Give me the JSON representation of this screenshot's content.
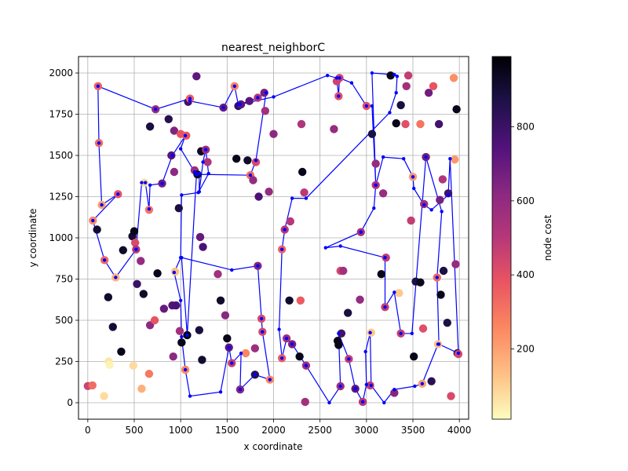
{
  "chart_data": {
    "type": "scatter",
    "title": "nearest_neighborC",
    "xlabel": "x coordinate",
    "ylabel": "y coordinate",
    "colorbar_label": "node cost",
    "xlim": [
      -100,
      4100
    ],
    "ylim": [
      -100,
      2100
    ],
    "xticks": [
      0,
      500,
      1000,
      1500,
      2000,
      2500,
      3000,
      3500,
      4000
    ],
    "yticks": [
      0,
      250,
      500,
      750,
      1000,
      1250,
      1500,
      1750,
      2000
    ],
    "clim": [
      10,
      990
    ],
    "cticks": [
      200,
      400,
      600,
      800
    ],
    "grid": true,
    "route_color": "#0000ff",
    "colormap": "magma_r",
    "points": [
      [
        0,
        101,
        450
      ],
      [
        50,
        105,
        320
      ],
      [
        55,
        1105,
        250
      ],
      [
        100,
        1050,
        900
      ],
      [
        110,
        1920,
        350
      ],
      [
        120,
        1575,
        330
      ],
      [
        150,
        1200,
        200
      ],
      [
        175,
        40,
        80
      ],
      [
        180,
        865,
        330
      ],
      [
        220,
        640,
        920
      ],
      [
        225,
        250,
        60
      ],
      [
        235,
        230,
        30
      ],
      [
        270,
        460,
        900
      ],
      [
        300,
        760,
        160
      ],
      [
        325,
        1265,
        380
      ],
      [
        360,
        310,
        950
      ],
      [
        380,
        925,
        920
      ],
      [
        480,
        1010,
        900
      ],
      [
        490,
        225,
        80
      ],
      [
        500,
        1040,
        950
      ],
      [
        510,
        970,
        420
      ],
      [
        520,
        930,
        520
      ],
      [
        530,
        720,
        800
      ],
      [
        570,
        860,
        600
      ],
      [
        580,
        85,
        170
      ],
      [
        600,
        660,
        920
      ],
      [
        610,
        1335,
        80
      ],
      [
        660,
        175,
        290
      ],
      [
        660,
        1170,
        300
      ],
      [
        670,
        470,
        620
      ],
      [
        670,
        1675,
        880
      ],
      [
        720,
        500,
        380
      ],
      [
        730,
        1780,
        600
      ],
      [
        750,
        785,
        950
      ],
      [
        800,
        1330,
        680
      ],
      [
        820,
        570,
        700
      ],
      [
        870,
        1720,
        850
      ],
      [
        900,
        1500,
        730
      ],
      [
        910,
        590,
        740
      ],
      [
        920,
        280,
        620
      ],
      [
        930,
        1400,
        620
      ],
      [
        930,
        1650,
        650
      ],
      [
        940,
        795,
        140
      ],
      [
        950,
        590,
        760
      ],
      [
        980,
        1180,
        880
      ],
      [
        990,
        435,
        560
      ],
      [
        1000,
        1630,
        380
      ],
      [
        1010,
        365,
        950
      ],
      [
        1050,
        200,
        260
      ],
      [
        1060,
        1620,
        380
      ],
      [
        1070,
        410,
        950
      ],
      [
        1080,
        1825,
        780
      ],
      [
        1100,
        1845,
        360
      ],
      [
        1150,
        1410,
        580
      ],
      [
        1170,
        1980,
        720
      ],
      [
        1180,
        1385,
        920
      ],
      [
        1200,
        440,
        880
      ],
      [
        1210,
        1005,
        700
      ],
      [
        1220,
        1525,
        930
      ],
      [
        1230,
        260,
        910
      ],
      [
        1240,
        945,
        760
      ],
      [
        1270,
        1535,
        580
      ],
      [
        1290,
        1460,
        520
      ],
      [
        1400,
        780,
        560
      ],
      [
        1430,
        620,
        920
      ],
      [
        1460,
        1790,
        690
      ],
      [
        1480,
        530,
        630
      ],
      [
        1500,
        390,
        950
      ],
      [
        1520,
        335,
        720
      ],
      [
        1550,
        240,
        460
      ],
      [
        1580,
        1920,
        270
      ],
      [
        1600,
        1480,
        950
      ],
      [
        1620,
        1800,
        810
      ],
      [
        1640,
        80,
        640
      ],
      [
        1650,
        1810,
        720
      ],
      [
        1700,
        300,
        260
      ],
      [
        1720,
        1470,
        920
      ],
      [
        1740,
        1830,
        730
      ],
      [
        1750,
        1380,
        320
      ],
      [
        1780,
        1350,
        600
      ],
      [
        1800,
        170,
        850
      ],
      [
        1800,
        330,
        570
      ],
      [
        1810,
        1460,
        430
      ],
      [
        1830,
        1850,
        520
      ],
      [
        1830,
        830,
        640
      ],
      [
        1840,
        1250,
        760
      ],
      [
        1870,
        510,
        420
      ],
      [
        1880,
        430,
        430
      ],
      [
        1900,
        1880,
        670
      ],
      [
        1910,
        1770,
        560
      ],
      [
        1950,
        1280,
        600
      ],
      [
        1960,
        140,
        260
      ],
      [
        2000,
        1630,
        620
      ],
      [
        2090,
        270,
        360
      ],
      [
        2090,
        930,
        350
      ],
      [
        2120,
        1050,
        500
      ],
      [
        2140,
        390,
        560
      ],
      [
        2170,
        620,
        920
      ],
      [
        2180,
        1100,
        500
      ],
      [
        2200,
        355,
        660
      ],
      [
        2280,
        280,
        950
      ],
      [
        2290,
        620,
        360
      ],
      [
        2300,
        1690,
        520
      ],
      [
        2310,
        1400,
        950
      ],
      [
        2330,
        1275,
        490
      ],
      [
        2340,
        5,
        560
      ],
      [
        2350,
        225,
        570
      ],
      [
        2680,
        1950,
        450
      ],
      [
        2690,
        375,
        950
      ],
      [
        2700,
        350,
        950
      ],
      [
        2700,
        1860,
        400
      ],
      [
        2710,
        1970,
        450
      ],
      [
        2720,
        800,
        430
      ],
      [
        2720,
        100,
        580
      ],
      [
        2730,
        420,
        780
      ],
      [
        2750,
        800,
        560
      ],
      [
        2650,
        1660,
        600
      ],
      [
        2800,
        545,
        880
      ],
      [
        2810,
        265,
        470
      ],
      [
        2880,
        85,
        720
      ],
      [
        2930,
        625,
        600
      ],
      [
        2940,
        1035,
        560
      ],
      [
        2960,
        5,
        500
      ],
      [
        3000,
        1800,
        400
      ],
      [
        3040,
        105,
        470
      ],
      [
        3050,
        425,
        120
      ],
      [
        3060,
        1630,
        870
      ],
      [
        3100,
        1450,
        600
      ],
      [
        3100,
        1320,
        510
      ],
      [
        3160,
        780,
        950
      ],
      [
        3180,
        1270,
        590
      ],
      [
        3200,
        580,
        460
      ],
      [
        3210,
        880,
        480
      ],
      [
        3260,
        1985,
        950
      ],
      [
        3300,
        60,
        640
      ],
      [
        3320,
        1695,
        950
      ],
      [
        3350,
        665,
        120
      ],
      [
        3370,
        1805,
        880
      ],
      [
        3370,
        420,
        460
      ],
      [
        3420,
        1690,
        400
      ],
      [
        3430,
        1920,
        560
      ],
      [
        3450,
        1985,
        470
      ],
      [
        3480,
        1105,
        470
      ],
      [
        3500,
        1370,
        220
      ],
      [
        3510,
        280,
        950
      ],
      [
        3530,
        735,
        870
      ],
      [
        3580,
        730,
        940
      ],
      [
        3580,
        1690,
        300
      ],
      [
        3600,
        115,
        200
      ],
      [
        3610,
        450,
        400
      ],
      [
        3620,
        1205,
        570
      ],
      [
        3640,
        1490,
        680
      ],
      [
        3670,
        1880,
        680
      ],
      [
        3700,
        130,
        840
      ],
      [
        3720,
        1920,
        380
      ],
      [
        3760,
        760,
        330
      ],
      [
        3770,
        355,
        130
      ],
      [
        3780,
        1690,
        780
      ],
      [
        3790,
        1230,
        670
      ],
      [
        3800,
        655,
        950
      ],
      [
        3820,
        1355,
        520
      ],
      [
        3830,
        800,
        870
      ],
      [
        3870,
        485,
        870
      ],
      [
        3880,
        1270,
        780
      ],
      [
        3910,
        40,
        420
      ],
      [
        3940,
        1970,
        240
      ],
      [
        3950,
        1475,
        220
      ],
      [
        3960,
        840,
        600
      ],
      [
        3970,
        1780,
        950
      ],
      [
        3980,
        300,
        850
      ],
      [
        3990,
        295,
        430
      ]
    ],
    "route": [
      [
        1620,
        1810
      ],
      [
        1580,
        1920
      ],
      [
        1460,
        1790
      ],
      [
        1100,
        1830
      ],
      [
        1100,
        1845
      ],
      [
        730,
        1780
      ],
      [
        110,
        1920
      ],
      [
        120,
        1575
      ],
      [
        150,
        1200
      ],
      [
        325,
        1265
      ],
      [
        55,
        1105
      ],
      [
        180,
        865
      ],
      [
        300,
        760
      ],
      [
        520,
        930
      ],
      [
        580,
        1335
      ],
      [
        620,
        1335
      ],
      [
        660,
        1175
      ],
      [
        670,
        1320
      ],
      [
        800,
        1330
      ],
      [
        910,
        1500
      ],
      [
        1050,
        1620
      ],
      [
        1000,
        1540
      ],
      [
        1150,
        1400
      ],
      [
        1200,
        1390
      ],
      [
        1200,
        1280
      ],
      [
        1240,
        1460
      ],
      [
        1270,
        1535
      ],
      [
        1300,
        1390
      ],
      [
        1190,
        1275
      ],
      [
        1010,
        1260
      ],
      [
        1000,
        880
      ],
      [
        930,
        790
      ],
      [
        1000,
        620
      ],
      [
        1010,
        400
      ],
      [
        1050,
        200
      ],
      [
        1100,
        40
      ],
      [
        1430,
        65
      ],
      [
        1520,
        335
      ],
      [
        1550,
        240
      ],
      [
        1650,
        300
      ],
      [
        1640,
        80
      ],
      [
        1800,
        170
      ],
      [
        1960,
        140
      ],
      [
        1880,
        430
      ],
      [
        1870,
        510
      ],
      [
        1830,
        830
      ],
      [
        1550,
        805
      ],
      [
        1010,
        880
      ],
      [
        1070,
        410
      ],
      [
        1170,
        1385
      ],
      [
        1750,
        1380
      ],
      [
        1810,
        1470
      ],
      [
        1920,
        1880
      ],
      [
        1830,
        1850
      ],
      [
        1640,
        1810
      ],
      [
        2000,
        1855
      ],
      [
        2580,
        1985
      ],
      [
        2680,
        1970
      ],
      [
        2700,
        1860
      ],
      [
        2710,
        1970
      ],
      [
        2840,
        1940
      ],
      [
        3000,
        1800
      ],
      [
        3060,
        1800
      ],
      [
        3100,
        1320
      ],
      [
        3080,
        1180
      ],
      [
        2940,
        1035
      ],
      [
        2560,
        940
      ],
      [
        2720,
        950
      ],
      [
        3200,
        880
      ],
      [
        3200,
        580
      ],
      [
        3300,
        670
      ],
      [
        3370,
        420
      ],
      [
        3490,
        420
      ],
      [
        3640,
        1490
      ],
      [
        3810,
        1160
      ],
      [
        3760,
        760
      ],
      [
        3780,
        355
      ],
      [
        3990,
        300
      ],
      [
        3900,
        1480
      ],
      [
        3880,
        1260
      ],
      [
        3700,
        1170
      ],
      [
        3620,
        1200
      ],
      [
        3510,
        1300
      ],
      [
        3500,
        1370
      ],
      [
        3400,
        1480
      ],
      [
        3180,
        1490
      ],
      [
        3100,
        1320
      ],
      [
        3060,
        2000
      ],
      [
        3300,
        1990
      ],
      [
        3330,
        1980
      ],
      [
        3320,
        1880
      ],
      [
        3250,
        1760
      ],
      [
        2350,
        1240
      ],
      [
        2200,
        1240
      ],
      [
        2120,
        1050
      ],
      [
        2090,
        930
      ],
      [
        2060,
        445
      ],
      [
        2090,
        270
      ],
      [
        2140,
        390
      ],
      [
        2200,
        355
      ],
      [
        2350,
        225
      ],
      [
        2600,
        0
      ],
      [
        2720,
        100
      ],
      [
        2700,
        420
      ],
      [
        2810,
        265
      ],
      [
        2880,
        85
      ],
      [
        2960,
        5
      ],
      [
        3000,
        110
      ],
      [
        2990,
        310
      ],
      [
        3040,
        425
      ],
      [
        3050,
        105
      ],
      [
        3190,
        0
      ],
      [
        3300,
        80
      ],
      [
        3520,
        100
      ],
      [
        3600,
        115
      ],
      [
        3770,
        355
      ]
    ]
  }
}
